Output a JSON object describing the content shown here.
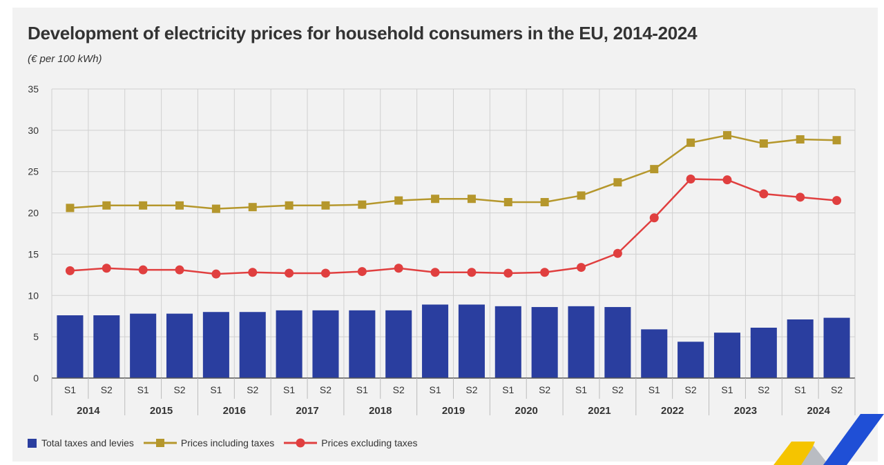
{
  "chart_data": {
    "type": "bar+line",
    "title": "Development of electricity prices for household consumers in the EU, 2014-2024",
    "subtitle": "(€ per 100 kWh)",
    "categories": [
      "S1",
      "S2",
      "S1",
      "S2",
      "S1",
      "S2",
      "S1",
      "S2",
      "S1",
      "S2",
      "S1",
      "S2",
      "S1",
      "S2",
      "S1",
      "S2",
      "S1",
      "S2",
      "S1",
      "S2",
      "S1",
      "S2"
    ],
    "years": [
      "2014",
      "2015",
      "2016",
      "2017",
      "2018",
      "2019",
      "2020",
      "2021",
      "2022",
      "2023",
      "2024"
    ],
    "ylim": [
      0,
      35
    ],
    "yticks": [
      "0",
      "5",
      "10",
      "15",
      "20",
      "25",
      "30",
      "35"
    ],
    "grid": true,
    "legend_position": "bottom-left",
    "series": [
      {
        "name": "Total taxes and levies",
        "type": "bar",
        "color": "#2a3e9f",
        "values": [
          7.6,
          7.6,
          7.8,
          7.8,
          8.0,
          8.0,
          8.2,
          8.2,
          8.2,
          8.2,
          8.9,
          8.9,
          8.7,
          8.6,
          8.7,
          8.6,
          5.9,
          4.4,
          5.5,
          6.1,
          7.1,
          7.3
        ]
      },
      {
        "name": "Prices including taxes",
        "type": "line",
        "marker": "square",
        "color": "#b5972c",
        "values": [
          20.6,
          20.9,
          20.9,
          20.9,
          20.5,
          20.7,
          20.9,
          20.9,
          21.0,
          21.5,
          21.7,
          21.7,
          21.3,
          21.3,
          22.1,
          23.7,
          25.3,
          28.5,
          29.4,
          28.4,
          28.9,
          28.8
        ]
      },
      {
        "name": "Prices excluding taxes",
        "type": "line",
        "marker": "circle",
        "color": "#e03f3f",
        "values": [
          13.0,
          13.3,
          13.1,
          13.1,
          12.6,
          12.8,
          12.7,
          12.7,
          12.9,
          13.3,
          12.8,
          12.8,
          12.7,
          12.8,
          13.4,
          15.1,
          19.4,
          24.1,
          24.0,
          22.3,
          21.9,
          21.5
        ]
      }
    ]
  },
  "legend": {
    "taxes": "Total taxes and levies",
    "incl": "Prices including taxes",
    "excl": "Prices excluding taxes"
  },
  "colors": {
    "bar": "#2a3e9f",
    "incl": "#b5972c",
    "excl": "#e03f3f",
    "grid": "#d0d0d0",
    "text": "#333333"
  }
}
